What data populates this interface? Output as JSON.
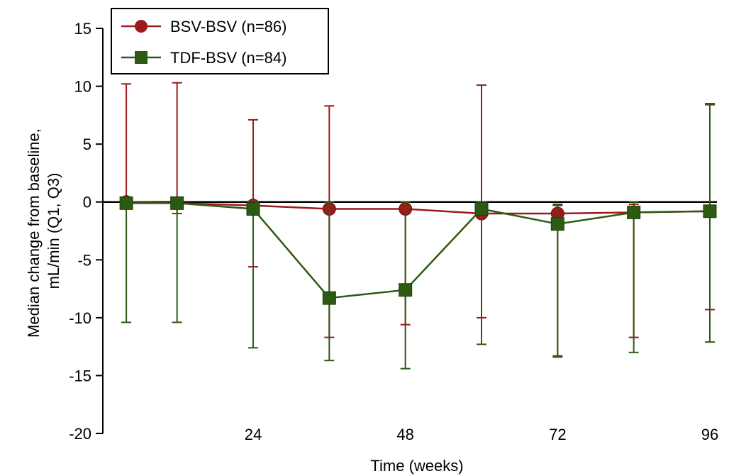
{
  "chart_data": {
    "type": "line",
    "xlabel": "Time (weeks)",
    "ylabel": [
      "Median change from baseline,",
      "mL/min (Q1, Q3)"
    ],
    "xlim": [
      0,
      96
    ],
    "ylim": [
      -20,
      15
    ],
    "xticks": [
      24,
      48,
      72,
      96
    ],
    "yticks": [
      15,
      10,
      5,
      0,
      -5,
      -10,
      -15,
      -20
    ],
    "x": [
      4,
      12,
      24,
      36,
      48,
      60,
      72,
      84,
      96
    ],
    "legend_position": "top-left",
    "series": [
      {
        "name": "BSV-BSV (n=86)",
        "color": "#9b1b1b",
        "marker": "circle",
        "values": [
          0,
          -0.1,
          -0.3,
          -0.6,
          -0.6,
          -1.0,
          -1.0,
          -0.9,
          -0.8
        ],
        "q1": [
          -0.1,
          -1.0,
          -5.6,
          -11.7,
          -10.6,
          -10.0,
          -13.4,
          -11.7,
          -9.3
        ],
        "q3": [
          10.2,
          10.3,
          7.1,
          8.3,
          0,
          10.1,
          -0.3,
          -0.2,
          8.5
        ]
      },
      {
        "name": "TDF-BSV (n=84)",
        "color": "#2d5a12",
        "marker": "square",
        "values": [
          -0.1,
          -0.1,
          -0.6,
          -8.3,
          -7.6,
          -0.6,
          -1.9,
          -0.9,
          -0.8
        ],
        "q1": [
          -10.4,
          -10.4,
          -12.6,
          -13.7,
          -14.4,
          -12.3,
          -13.3,
          -13.0,
          -12.1
        ],
        "q3": [
          0,
          0,
          0,
          0,
          0,
          0,
          -0.2,
          0,
          8.4
        ]
      }
    ]
  }
}
